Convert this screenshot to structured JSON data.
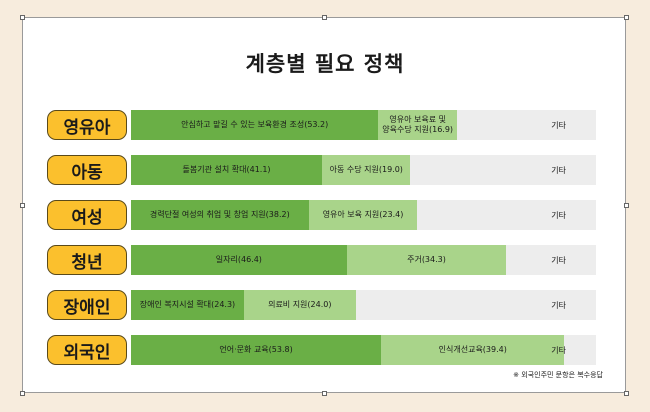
{
  "colors": {
    "primary_segment": "#6aaf46",
    "secondary_segment": "#a9d48a",
    "remainder": "#ededed",
    "category_badge": "#fbc02d"
  },
  "chart_data": {
    "type": "bar",
    "orientation": "horizontal",
    "stacked": true,
    "title": "계층별 필요 정책",
    "xlim": [
      0,
      100
    ],
    "unit": "%",
    "legend": "none",
    "grid": false,
    "categories": [
      "영유아",
      "아동",
      "여성",
      "청년",
      "장애인",
      "외국인"
    ],
    "rows": [
      {
        "category": "영유아",
        "segments": [
          {
            "label": "안심하고 맡길 수 있는 보육환경 조성(53.2)",
            "value": 53.2
          },
          {
            "label": "영유아 보육료 및\n양육수당 지원(16.9)",
            "value": 16.9
          }
        ],
        "other_label": "기타"
      },
      {
        "category": "아동",
        "segments": [
          {
            "label": "돌봄기관 설치 확대(41.1)",
            "value": 41.1
          },
          {
            "label": "아동 수당 지원(19.0)",
            "value": 19.0
          }
        ],
        "other_label": "기타"
      },
      {
        "category": "여성",
        "segments": [
          {
            "label": "경력단절 여성의 취업 및 창업 지원(38.2)",
            "value": 38.2
          },
          {
            "label": "영유아 보육 지원(23.4)",
            "value": 23.4
          }
        ],
        "other_label": "기타"
      },
      {
        "category": "청년",
        "segments": [
          {
            "label": "일자리(46.4)",
            "value": 46.4
          },
          {
            "label": "주거(34.3)",
            "value": 34.3
          }
        ],
        "other_label": "기타"
      },
      {
        "category": "장애인",
        "segments": [
          {
            "label": "장애인 복지시설 확대(24.3)",
            "value": 24.3
          },
          {
            "label": "의료비 지원(24.0)",
            "value": 24.0
          }
        ],
        "other_label": "기타"
      },
      {
        "category": "외국인",
        "segments": [
          {
            "label": "언어·문화 교육(53.8)",
            "value": 53.8
          },
          {
            "label": "인식개선교육(39.4)",
            "value": 39.4
          }
        ],
        "other_label": "기타"
      }
    ],
    "note": "※ 외국인주민 문항은 복수응답"
  }
}
